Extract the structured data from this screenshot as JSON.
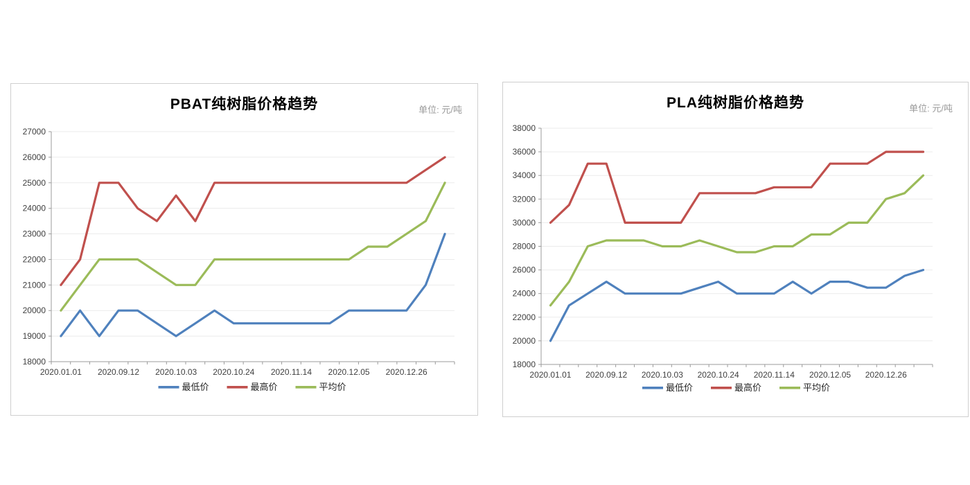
{
  "colors": {
    "background": "#ffffff",
    "panel_border": "#cfcfcf",
    "axis": "#9b9b9b",
    "grid": "#ebebeb",
    "tick_label": "#3f3f3f",
    "title": "#000000",
    "unit": "#9a9a9a",
    "legend_text": "#262626",
    "series_min": "#4F81BD",
    "series_max": "#C0504D",
    "series_avg": "#9BBB59"
  },
  "charts": [
    {
      "title": "PBAT纯树脂价格趋势",
      "unit_label": "单位: 元/吨",
      "legend": [
        "最低价",
        "最高价",
        "平均价"
      ],
      "chart_data": {
        "type": "line",
        "title": "PBAT纯树脂价格趋势",
        "ylabel": "元/吨",
        "ylim": [
          18000,
          27000
        ],
        "y_step": 1000,
        "grid": true,
        "legend_position": "bottom",
        "n_points": 21,
        "x_tick_labels": [
          "2020.01.01",
          "2020.09.12",
          "2020.10.03",
          "2020.10.24",
          "2020.11.14",
          "2020.12.05",
          "2020.12.26"
        ],
        "x_label_interval": 3,
        "series": [
          {
            "name": "最低价",
            "color": "#4F81BD",
            "values": [
              19000,
              20000,
              19000,
              20000,
              20000,
              19500,
              19000,
              19500,
              20000,
              19500,
              19500,
              19500,
              19500,
              19500,
              19500,
              20000,
              20000,
              20000,
              20000,
              21000,
              23000
            ]
          },
          {
            "name": "最高价",
            "color": "#C0504D",
            "values": [
              21000,
              22000,
              25000,
              25000,
              24000,
              23500,
              24500,
              23500,
              25000,
              25000,
              25000,
              25000,
              25000,
              25000,
              25000,
              25000,
              25000,
              25000,
              25000,
              25500,
              26000
            ]
          },
          {
            "name": "平均价",
            "color": "#9BBB59",
            "values": [
              20000,
              21000,
              22000,
              22000,
              22000,
              21500,
              21000,
              21000,
              22000,
              22000,
              22000,
              22000,
              22000,
              22000,
              22000,
              22000,
              22500,
              22500,
              23000,
              23500,
              25000
            ]
          }
        ]
      }
    },
    {
      "title": "PLA纯树脂价格趋势",
      "unit_label": "单位: 元/吨",
      "legend": [
        "最低价",
        "最高价",
        "平均价"
      ],
      "chart_data": {
        "type": "line",
        "title": "PLA纯树脂价格趋势",
        "ylabel": "元/吨",
        "ylim": [
          18000,
          38000
        ],
        "y_step": 2000,
        "grid": true,
        "legend_position": "bottom",
        "n_points": 21,
        "x_tick_labels": [
          "2020.01.01",
          "2020.09.12",
          "2020.10.03",
          "2020.10.24",
          "2020.11.14",
          "2020.12.05",
          "2020.12.26"
        ],
        "x_label_interval": 3,
        "series": [
          {
            "name": "最低价",
            "color": "#4F81BD",
            "values": [
              20000,
              23000,
              24000,
              25000,
              24000,
              24000,
              24000,
              24000,
              24500,
              25000,
              24000,
              24000,
              24000,
              25000,
              24000,
              25000,
              25000,
              24500,
              24500,
              25500,
              26000
            ]
          },
          {
            "name": "最高价",
            "color": "#C0504D",
            "values": [
              30000,
              31500,
              35000,
              35000,
              30000,
              30000,
              30000,
              30000,
              32500,
              32500,
              32500,
              32500,
              33000,
              33000,
              33000,
              35000,
              35000,
              35000,
              36000,
              36000,
              36000
            ]
          },
          {
            "name": "平均价",
            "color": "#9BBB59",
            "values": [
              23000,
              25000,
              28000,
              28500,
              28500,
              28500,
              28000,
              28000,
              28500,
              28000,
              27500,
              27500,
              28000,
              28000,
              29000,
              29000,
              30000,
              30000,
              32000,
              32500,
              34000
            ]
          }
        ]
      }
    }
  ]
}
